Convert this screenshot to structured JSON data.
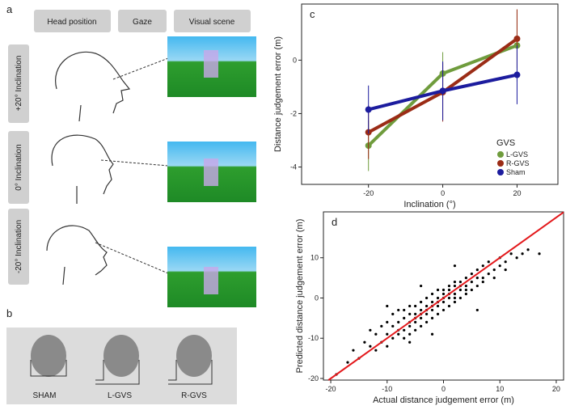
{
  "panel_a": {
    "letter": "a",
    "headers": [
      "Head position",
      "Gaze",
      "Visual scene"
    ],
    "rows": [
      "+20° Inclination",
      "0° Inclination",
      "-20° Inclination"
    ]
  },
  "panel_b": {
    "letter": "b",
    "labels": [
      "SHAM",
      "L-GVS",
      "R-GVS"
    ]
  },
  "chart_data": [
    {
      "type": "line",
      "letter": "c",
      "xlabel": "Inclination (°)",
      "ylabel": "Distance judgement error (m)",
      "x": [
        -20,
        0,
        20
      ],
      "xlim": [
        -38,
        31
      ],
      "ylim": [
        -4.65,
        2.1
      ],
      "xticks": [
        -20,
        0,
        20
      ],
      "yticks": [
        -4,
        -2,
        0
      ],
      "legend_title": "GVS",
      "legend": "lower right",
      "series": [
        {
          "name": "L-GVS",
          "color": "#6f9c3d",
          "values": [
            -3.2,
            -0.5,
            0.55
          ],
          "errors": [
            0.95,
            0.8,
            1.35
          ]
        },
        {
          "name": "R-GVS",
          "color": "#9b2c16",
          "values": [
            -2.7,
            -1.2,
            0.8
          ],
          "errors": [
            1.0,
            1.1,
            1.1
          ]
        },
        {
          "name": "Sham",
          "color": "#1c1c9e",
          "values": [
            -1.85,
            -1.15,
            -0.55
          ],
          "errors": [
            0.9,
            1.1,
            1.1
          ]
        }
      ]
    },
    {
      "type": "scatter",
      "letter": "d",
      "xlabel": "Actual distance judgement error (m)",
      "ylabel": "Predicted distance judgement error (m)",
      "xlim": [
        -21.3,
        21.3
      ],
      "ylim": [
        -20.4,
        21.4
      ],
      "xticks": [
        -20,
        -10,
        0,
        10,
        20
      ],
      "yticks": [
        -20,
        -10,
        0,
        10
      ],
      "color": "#000000",
      "reference_line": {
        "x": [
          -20.4,
          21.3
        ],
        "y": [
          -20.4,
          21.3
        ],
        "color": "#e3191c"
      },
      "x": [
        -19,
        -17,
        -16,
        -15,
        -14,
        -13,
        -13,
        -12,
        -12,
        -11,
        -11,
        -10,
        -10,
        -10,
        -9,
        -9,
        -9,
        -8,
        -8,
        -8,
        -8,
        -7,
        -7,
        -7,
        -7,
        -6,
        -6,
        -6,
        -6,
        -6,
        -5,
        -5,
        -5,
        -5,
        -5,
        -4,
        -4,
        -4,
        -4,
        -4,
        -3,
        -3,
        -3,
        -3,
        -3,
        -2,
        -2,
        -2,
        -2,
        -2,
        -1,
        -1,
        -1,
        -1,
        -1,
        0,
        0,
        0,
        0,
        0,
        1,
        1,
        1,
        1,
        1,
        2,
        2,
        2,
        2,
        2,
        3,
        3,
        3,
        3,
        4,
        4,
        4,
        4,
        5,
        5,
        5,
        6,
        6,
        6,
        7,
        7,
        7,
        8,
        8,
        9,
        9,
        10,
        10,
        11,
        11,
        12,
        13,
        14,
        15,
        17,
        -6,
        -2,
        2,
        6,
        -10,
        -4
      ],
      "values": [
        -19,
        -16,
        -13,
        -15,
        -11,
        -12,
        -8,
        -13,
        -9,
        -7,
        -11,
        -9,
        -6,
        -12,
        -7,
        -10,
        -4,
        -6,
        -9,
        -3,
        -8,
        -5,
        -8,
        -3,
        -10,
        -4,
        -7,
        -2,
        -6,
        -9,
        -4,
        -6,
        -2,
        -8,
        -5,
        -3,
        -5,
        -1,
        -7,
        -4,
        -2,
        -4,
        0,
        -6,
        -3,
        -1,
        -3,
        1,
        -5,
        -2,
        0,
        -2,
        2,
        -4,
        -1,
        0,
        -1,
        2,
        -3,
        1,
        1,
        0,
        3,
        -2,
        2,
        1,
        3,
        0,
        4,
        -1,
        2,
        4,
        0,
        3,
        3,
        5,
        1,
        2,
        4,
        6,
        2,
        5,
        3,
        7,
        5,
        8,
        4,
        6,
        9,
        7,
        5,
        8,
        10,
        9,
        7,
        11,
        10,
        11,
        12,
        11,
        -11,
        -9,
        8,
        -3,
        -2,
        3
      ]
    }
  ]
}
